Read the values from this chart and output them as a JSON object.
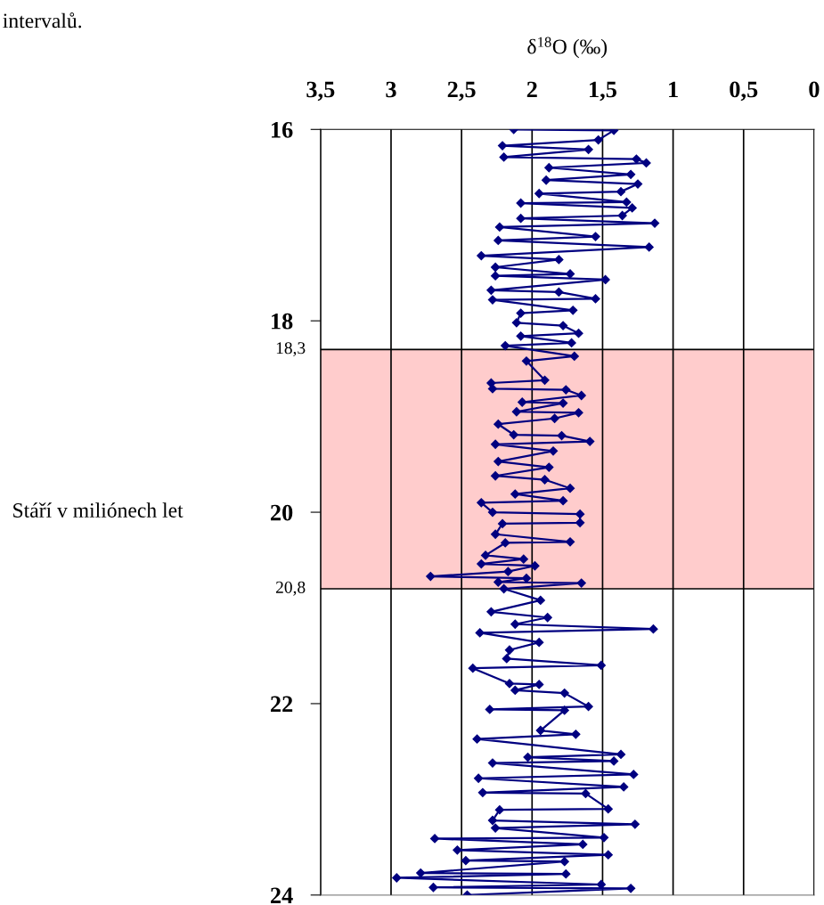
{
  "chart_data": {
    "type": "line",
    "xlabel": "δ$^{18}$O (‰)",
    "ylabel": "Stáří v miliónech let",
    "annotations": [
      "intervalů."
    ],
    "xlim": [
      3.5,
      0
    ],
    "ylim": [
      24,
      16
    ],
    "xticks": [
      {
        "value": 3.5,
        "label": "3,5"
      },
      3,
      {
        "value": 2.5,
        "label": "2,5"
      },
      2,
      {
        "value": 1.5,
        "label": "1,5"
      },
      1,
      {
        "value": 0.5,
        "label": "0,5"
      },
      0
    ],
    "yticks": [
      16,
      18,
      20,
      22,
      24
    ],
    "grid": "x",
    "marker": "diamond",
    "line_style": "solid",
    "bands": [
      {
        "axis": "y",
        "from": 18.3,
        "to": 20.8,
        "color": "#ffcccc"
      }
    ],
    "ref_lines": [
      {
        "axis": "y",
        "value": 18.3,
        "label": "18,3",
        "color": "#000000"
      },
      {
        "axis": "y",
        "value": 20.8,
        "label": "20,8",
        "color": "#000000"
      }
    ],
    "series": [
      {
        "color": "#000080",
        "values": [
          16.0,
          16.01,
          16.11,
          16.17,
          16.21,
          16.29,
          16.31,
          16.35,
          16.4,
          16.47,
          16.53,
          16.57,
          16.65,
          16.67,
          16.76,
          16.77,
          16.82,
          16.9,
          16.93,
          16.98,
          17.02,
          17.12,
          17.16,
          17.23,
          17.32,
          17.36,
          17.44,
          17.51,
          17.53,
          17.57,
          17.68,
          17.7,
          17.77,
          17.78,
          17.89,
          17.92,
          18.02,
          18.05,
          18.13,
          18.16,
          18.23,
          18.26,
          18.37,
          18.42,
          18.62,
          18.65,
          18.71,
          18.72,
          18.78,
          18.85,
          18.86,
          18.95,
          18.96,
          19.02,
          19.08,
          19.19,
          19.2,
          19.26,
          19.29,
          19.36,
          19.47,
          19.53,
          19.62,
          19.66,
          19.75,
          19.81,
          19.88,
          19.9,
          20.0,
          20.02,
          20.11,
          20.12,
          20.23,
          20.31,
          20.32,
          20.45,
          20.49,
          20.54,
          20.56,
          20.62,
          20.67,
          20.69,
          20.73,
          20.74,
          20.8,
          20.92,
          21.04,
          21.1,
          21.17,
          21.22,
          21.26,
          21.36,
          21.44,
          21.53,
          21.6,
          21.63,
          21.79,
          21.8,
          21.86,
          21.89,
          22.03,
          22.06,
          22.07,
          22.28,
          22.32,
          22.37,
          22.53,
          22.56,
          22.6,
          22.62,
          22.74,
          22.78,
          22.87,
          22.93,
          22.94,
          23.1,
          23.11,
          23.22,
          23.26,
          23.3,
          23.4,
          23.41,
          23.47,
          23.53,
          23.58,
          23.64,
          23.65,
          23.77,
          23.78,
          23.82,
          23.89,
          23.92,
          23.93,
          24.0
        ],
        "x": [
          2.13,
          1.42,
          1.53,
          2.21,
          1.6,
          2.2,
          1.26,
          1.19,
          1.88,
          1.3,
          1.9,
          1.25,
          1.37,
          1.95,
          1.33,
          2.08,
          1.29,
          1.36,
          2.08,
          1.13,
          2.23,
          1.55,
          2.24,
          1.17,
          2.36,
          1.81,
          2.26,
          1.73,
          2.26,
          1.48,
          2.29,
          1.81,
          1.55,
          2.28,
          1.71,
          2.08,
          2.11,
          1.78,
          1.67,
          2.08,
          1.72,
          2.19,
          1.7,
          2.04,
          1.91,
          2.29,
          2.28,
          1.76,
          1.65,
          2.07,
          1.78,
          2.11,
          1.67,
          1.84,
          2.24,
          2.13,
          1.79,
          1.59,
          2.26,
          1.85,
          2.24,
          1.88,
          2.26,
          1.91,
          1.73,
          2.12,
          1.78,
          2.36,
          2.28,
          1.66,
          1.66,
          2.21,
          2.26,
          1.73,
          2.19,
          2.33,
          2.06,
          2.36,
          1.98,
          2.17,
          2.72,
          2.04,
          2.24,
          1.65,
          2.2,
          1.94,
          2.29,
          1.89,
          2.12,
          1.14,
          2.37,
          1.95,
          2.16,
          2.18,
          1.51,
          2.42,
          2.16,
          1.95,
          2.12,
          1.77,
          1.6,
          2.3,
          1.77,
          1.94,
          1.69,
          2.39,
          1.37,
          2.03,
          1.42,
          2.28,
          1.28,
          2.38,
          1.35,
          2.35,
          1.62,
          1.46,
          2.23,
          2.28,
          1.27,
          2.26,
          1.49,
          2.69,
          1.64,
          2.53,
          1.46,
          2.47,
          1.77,
          2.79,
          1.76,
          2.96,
          1.51,
          2.7,
          1.3,
          2.46
        ]
      }
    ]
  }
}
